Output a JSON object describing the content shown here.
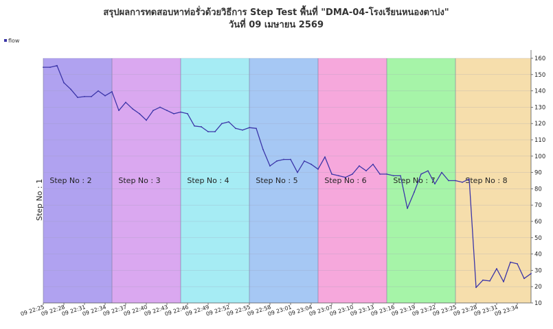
{
  "chart_data": {
    "type": "line",
    "title_line1": "สรุปผลการทดสอบหาท่อรั่วด้วยวิธีการ Step Test พื้นที่ \"DMA-04-โรงเรียนหนองตาบ่ง\"",
    "title_line2": "วันที่ 09 เมษายน 2569",
    "ylim": [
      10,
      160
    ],
    "y_ticks": [
      "10",
      "20",
      "30",
      "40",
      "50",
      "60",
      "70",
      "80",
      "90",
      "100",
      "110",
      "120",
      "130",
      "140",
      "150",
      "160"
    ],
    "y_tick_values": [
      10,
      20,
      30,
      40,
      50,
      60,
      70,
      80,
      90,
      100,
      110,
      120,
      130,
      140,
      150,
      160
    ],
    "grid": true,
    "legend": {
      "position": "top-left",
      "label": "flow",
      "color": "#3b35a8"
    },
    "x_ticks": [
      "09 22:25",
      "09 22:28",
      "09 22:31",
      "09 22:34",
      "09 22:37",
      "09 22:40",
      "09 22:43",
      "09 22:46",
      "09 22:49",
      "09 22:52",
      "09 22:55",
      "09 22:58",
      "09 23:01",
      "09 23:04",
      "09 23:07",
      "09 23:10",
      "09 23:13",
      "09 23:16",
      "09 23:19",
      "09 23:22",
      "09 23:25",
      "09 23:28",
      "09 23:31",
      "09 23:34"
    ],
    "x_start_minute": 0,
    "x_end_minute": 71,
    "series": [
      {
        "name": "flow",
        "color": "#3b35a8",
        "x": [
          0,
          1,
          2,
          3,
          4,
          5,
          6,
          7,
          8,
          9,
          10,
          11,
          12,
          13,
          14,
          15,
          16,
          17,
          18,
          19,
          20,
          21,
          22,
          23,
          24,
          25,
          26,
          27,
          28,
          29,
          30,
          31,
          32,
          33,
          34,
          35,
          36,
          37,
          38,
          39,
          40,
          41,
          42,
          43,
          44,
          45,
          46,
          47,
          48,
          49,
          50,
          51,
          52,
          53,
          54,
          55,
          56,
          57,
          58,
          59,
          60,
          61,
          62,
          63,
          64,
          65,
          66,
          67,
          68,
          69,
          70,
          71
        ],
        "values": [
          154.5,
          154.5,
          155.5,
          145,
          141,
          136,
          136.5,
          136.5,
          140,
          137,
          139.5,
          128,
          133,
          129,
          126,
          122,
          128,
          130,
          128,
          126,
          127,
          126,
          118.5,
          118,
          115,
          115,
          120,
          121,
          117,
          116,
          117.5,
          117,
          104,
          94,
          97,
          98,
          98,
          90,
          97,
          95,
          92,
          99.5,
          89,
          88,
          87,
          89,
          94,
          91,
          95,
          89,
          89,
          88,
          88,
          68,
          78,
          89,
          91,
          83,
          90,
          85,
          85,
          84,
          86,
          19.5,
          24,
          23.5,
          31,
          23,
          35,
          34,
          25,
          28
        ]
      }
    ],
    "steps": [
      {
        "label": "Step No : 1",
        "start": 0,
        "end": 0,
        "color": "#ffffff",
        "vertical": true
      },
      {
        "label": "Step No : 2",
        "start": 0,
        "end": 10,
        "color": "#b0a2f0"
      },
      {
        "label": "Step No : 3",
        "start": 10,
        "end": 20,
        "color": "#daa8f0"
      },
      {
        "label": "Step No : 4",
        "start": 20,
        "end": 30,
        "color": "#a6ecf4"
      },
      {
        "label": "Step No : 5",
        "start": 30,
        "end": 40,
        "color": "#a6c8f4"
      },
      {
        "label": "Step No : 6",
        "start": 40,
        "end": 50,
        "color": "#f6a8dc"
      },
      {
        "label": "Step No : 7",
        "start": 50,
        "end": 60,
        "color": "#a6f4a8"
      },
      {
        "label": "Step No : 8",
        "start": 60,
        "end": 71,
        "color": "#f6deac"
      }
    ]
  }
}
